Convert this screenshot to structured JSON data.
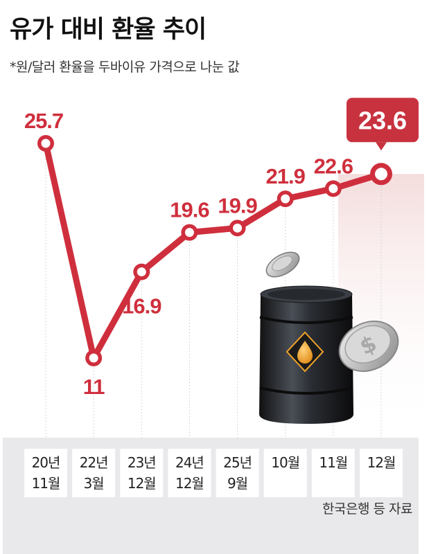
{
  "title": "유가 대비 환율 추이",
  "subtitle": "*원/달러 환율을 두바이유 가격으로 나눈 값",
  "source": "한국은행 등 자료",
  "colors": {
    "line": "#cf2f3d",
    "label": "#cf2f3d",
    "callout_bg": "#c8323f",
    "callout_text": "#ffffff",
    "band": "#e9e9eb",
    "box": "#ffffff",
    "box_text": "#222222"
  },
  "icon": "oil-barrel-and-coin-icon",
  "chart_data": {
    "type": "line",
    "title": "유가 대비 환율 추이",
    "categories": [
      [
        "20년",
        "11월"
      ],
      [
        "22년",
        "3월"
      ],
      [
        "23년",
        "12월"
      ],
      [
        "24년",
        "12월"
      ],
      [
        "25년",
        "9월"
      ],
      [
        "10월"
      ],
      [
        "11월"
      ],
      [
        "12월"
      ]
    ],
    "values": [
      25.7,
      11,
      16.9,
      19.6,
      19.9,
      21.9,
      22.6,
      23.6
    ],
    "data_labels": [
      "25.7",
      "11",
      "16.9",
      "19.6",
      "19.9",
      "21.9",
      "22.6",
      "23.6"
    ],
    "highlight_last": true,
    "xlabel": "",
    "ylabel": "",
    "grid": false,
    "legend": "none"
  }
}
